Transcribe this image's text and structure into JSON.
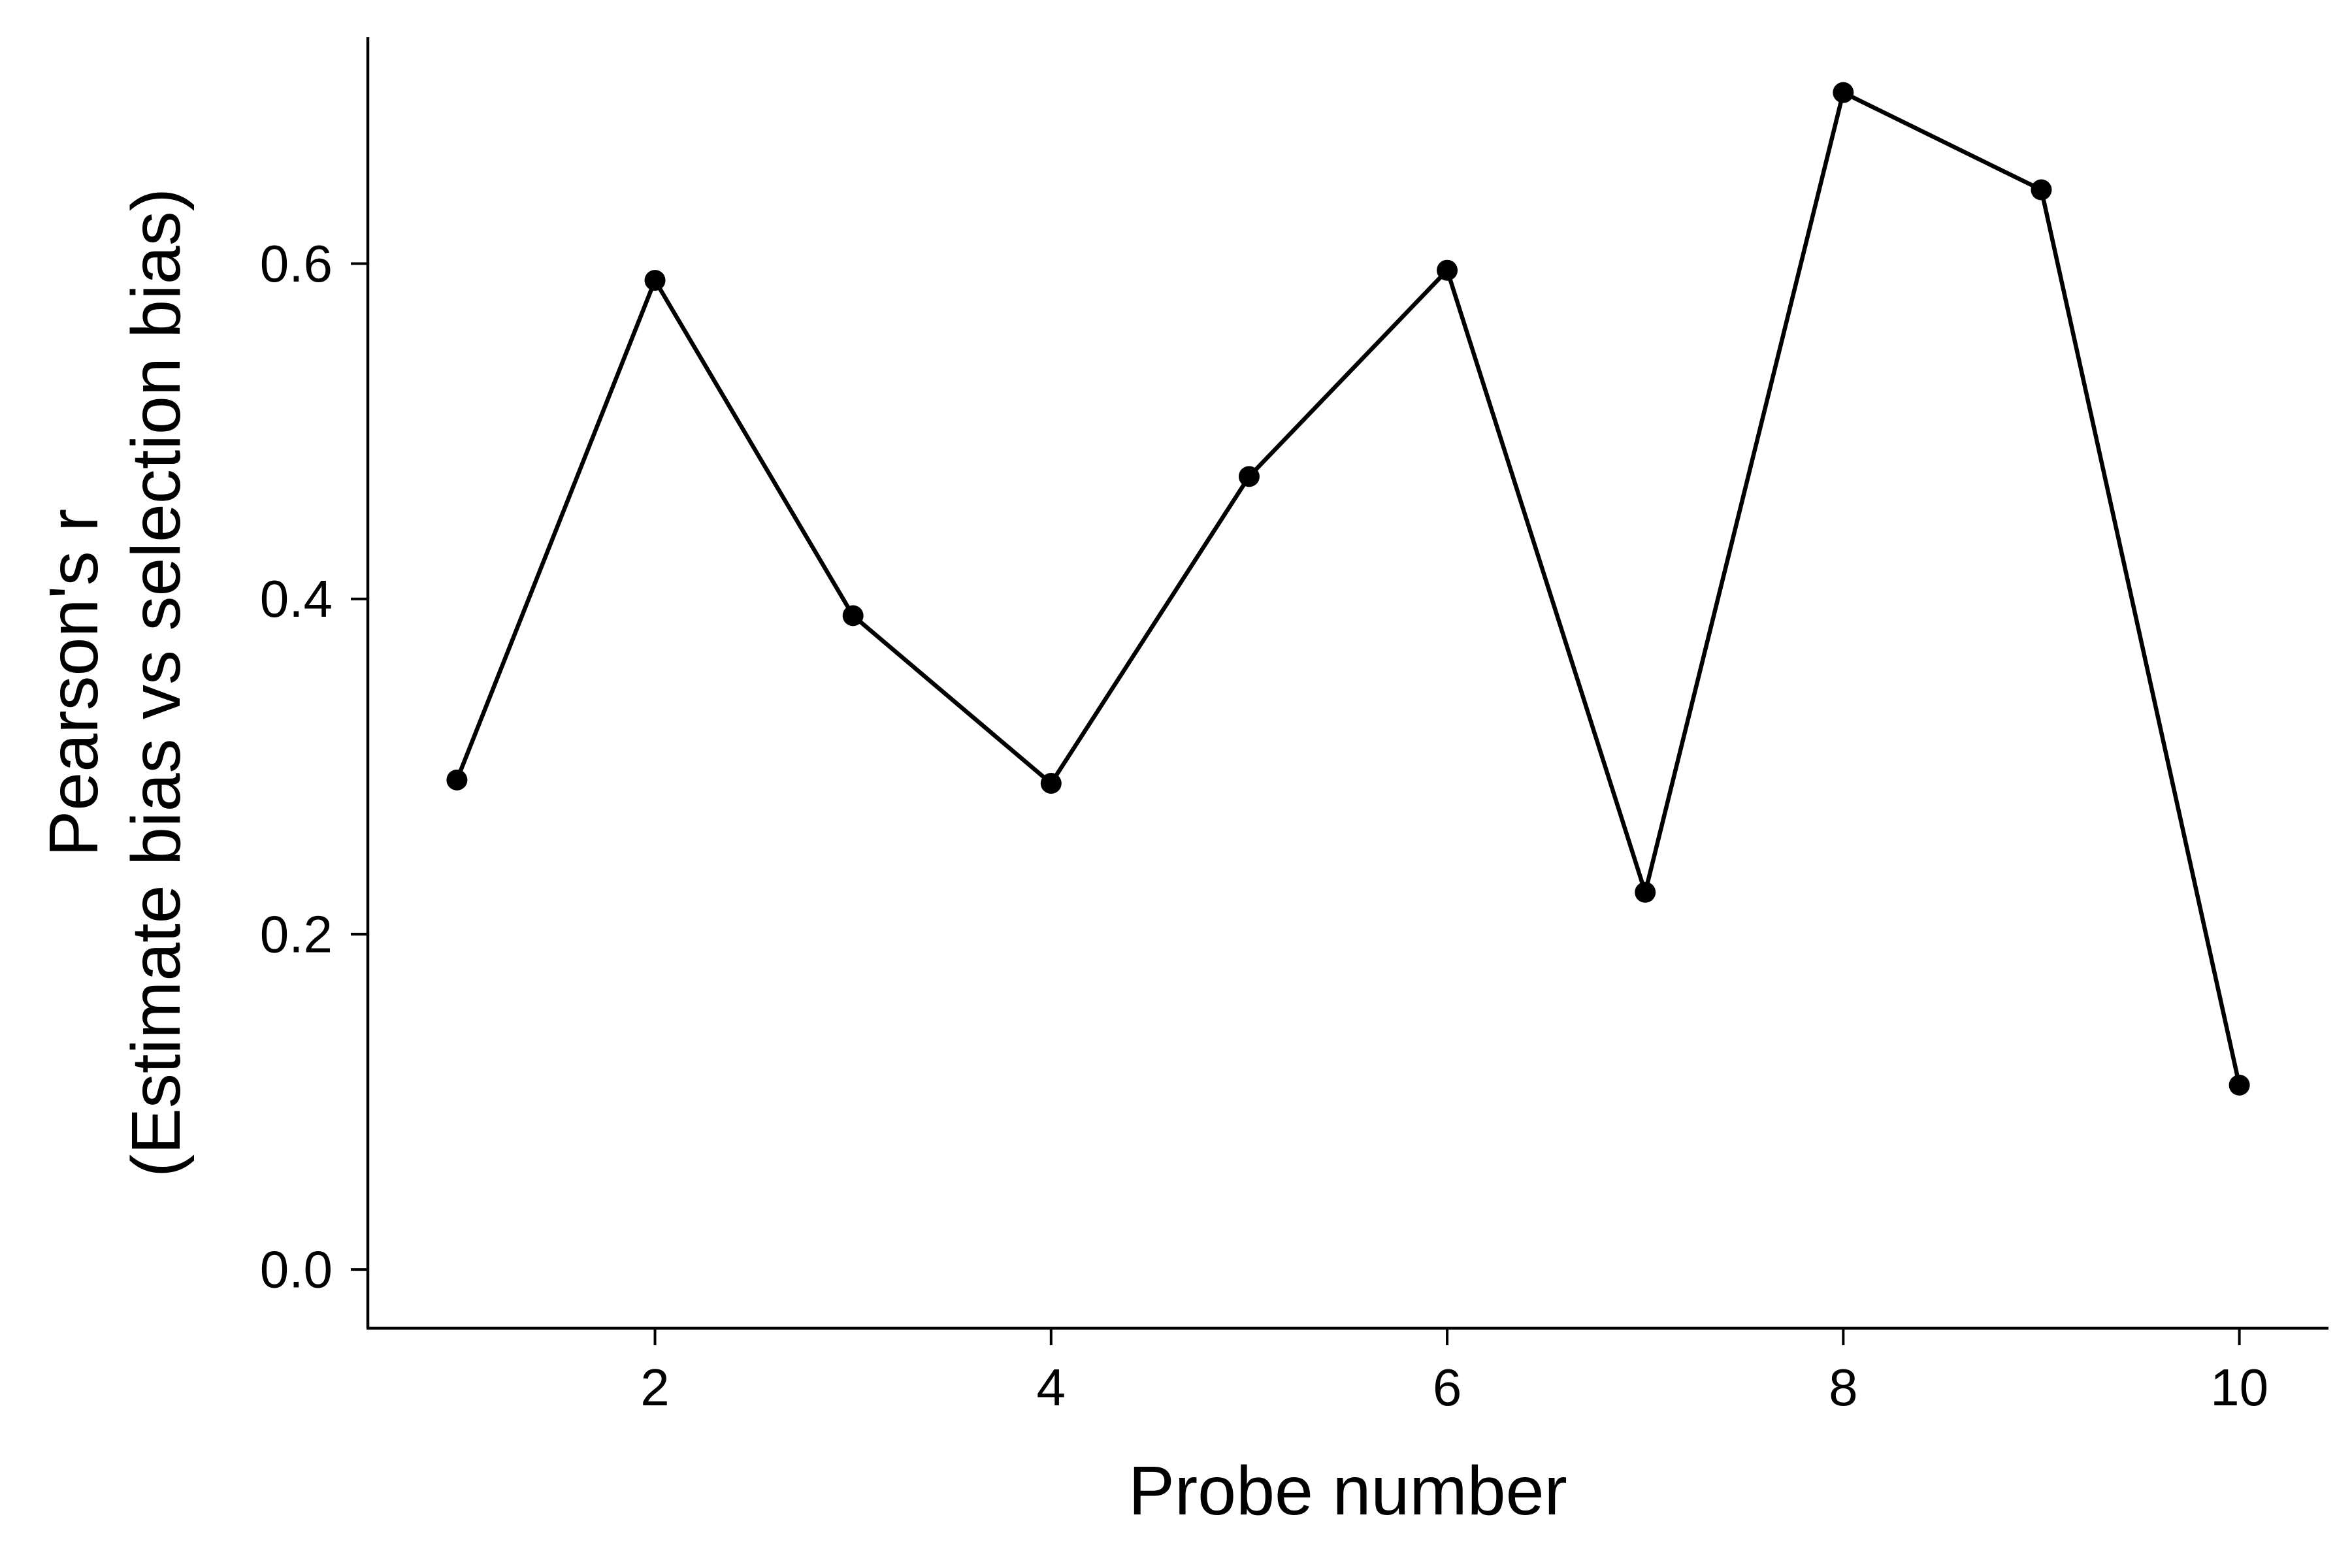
{
  "chart_data": {
    "type": "line",
    "title": "",
    "xlabel": "Probe number",
    "ylabel_lines": [
      "Pearson's r",
      "(Estimate bias vs selection bias)"
    ],
    "x": [
      1,
      2,
      3,
      4,
      5,
      6,
      7,
      8,
      9,
      10
    ],
    "series": [
      {
        "values": [
          0.292,
          0.59,
          0.39,
          0.29,
          0.473,
          0.596,
          0.225,
          0.702,
          0.644,
          0.11
        ]
      }
    ],
    "xlim": [
      0.55,
      10.45
    ],
    "ylim": [
      -0.035,
      0.735
    ],
    "xticks": [
      2,
      4,
      6,
      8,
      10
    ],
    "xtick_labels": [
      "2",
      "4",
      "6",
      "8",
      "10"
    ],
    "yticks": [
      0.0,
      0.2,
      0.4,
      0.6
    ],
    "ytick_labels": [
      "0.0",
      "0.2",
      "0.4",
      "0.6"
    ],
    "grid": false,
    "legend": "none",
    "line_color": "#000000",
    "marker_color": "#000000"
  }
}
